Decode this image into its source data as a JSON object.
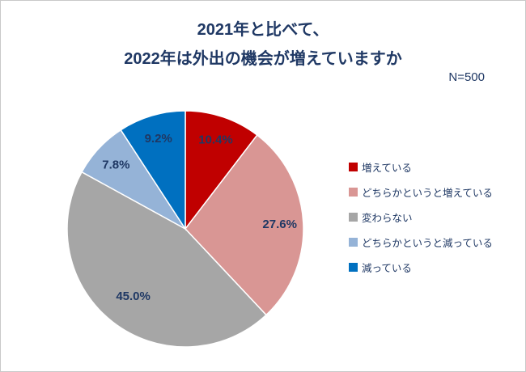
{
  "frame": {
    "title_line1": "2021年と比べて、",
    "title_line2": "2022年は外出の機会が増えていますか",
    "sample_size": "N=500"
  },
  "chart_data": {
    "type": "pie",
    "title": "2021年と比べて、2022年は外出の機会が増えていますか",
    "sample_size_label": "N=500",
    "sample_size_value": 500,
    "start_angle_deg": 0,
    "direction": "clockwise",
    "legend_position": "right",
    "label_color": "#1F3864",
    "slices": [
      {
        "label": "増えている",
        "value": 10.4,
        "data_label": "10.4%",
        "color": "#C00000"
      },
      {
        "label": "どちらかというと増えている",
        "value": 27.6,
        "data_label": "27.6%",
        "color": "#D99694"
      },
      {
        "label": "変わらない",
        "value": 45.0,
        "data_label": "45.0%",
        "color": "#A6A6A6"
      },
      {
        "label": "どちらかというと減っている",
        "value": 7.8,
        "data_label": "7.8%",
        "color": "#95B3D7"
      },
      {
        "label": "減っている",
        "value": 9.2,
        "data_label": "9.2%",
        "color": "#0070C0"
      }
    ]
  }
}
